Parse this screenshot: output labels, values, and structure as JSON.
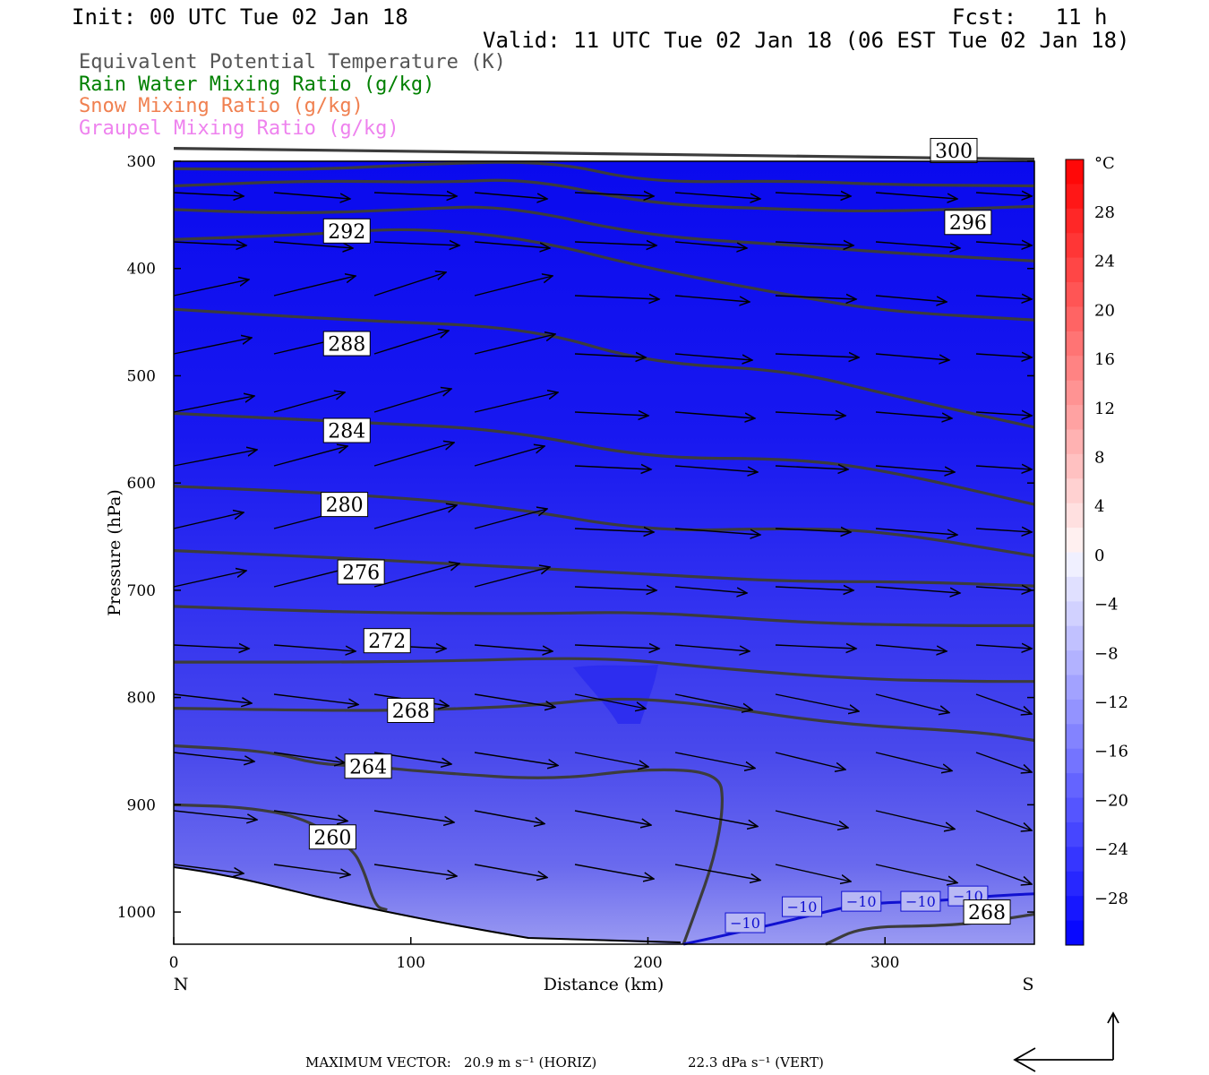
{
  "header": {
    "init": "Init: 00 UTC Tue 02 Jan 18",
    "fcst": "Fcst:   11 h",
    "valid": "Valid: 11 UTC Tue 02 Jan 18 (06 EST Tue 02 Jan 18)"
  },
  "legend": [
    {
      "label": "Equivalent Potential Temperature (K)",
      "color": "#555555"
    },
    {
      "label": "Rain Water Mixing Ratio (g/kg)",
      "color": "#008000"
    },
    {
      "label": "Snow Mixing Ratio (g/kg)",
      "color": "#f08050"
    },
    {
      "label": "Graupel Mixing Ratio (g/kg)",
      "color": "#ee82ee"
    }
  ],
  "footer": {
    "max_label": "MAXIMUM VECTOR:",
    "horiz": "20.9 m s⁻¹ (HORIZ)",
    "vert": "22.3 dPa s⁻¹ (VERT)"
  },
  "chart_data": {
    "type": "contour",
    "xlabel": "Distance (km)",
    "ylabel": "Pressure (hPa)",
    "xlim": [
      0,
      363
    ],
    "ylim": [
      1030,
      300
    ],
    "x_ticks": [
      0,
      100,
      200,
      300
    ],
    "y_ticks": [
      300,
      400,
      500,
      600,
      700,
      800,
      900,
      1000
    ],
    "endpoints": {
      "left": "N",
      "right": "S"
    },
    "colorbar": {
      "unit": "°C",
      "range": [
        -32,
        32
      ],
      "tick_labels": [
        "28",
        "24",
        "20",
        "16",
        "12",
        "8",
        "4",
        "0",
        "−4",
        "−8",
        "−12",
        "−16",
        "−20",
        "−24",
        "−28"
      ],
      "neg_color": "#0000ff",
      "pos_color": "#ff0000"
    },
    "theta_e_contours": [
      {
        "value": 260,
        "label_at": [
          67,
          930
        ],
        "points": [
          [
            0,
            900
          ],
          [
            30,
            902
          ],
          [
            55,
            912
          ],
          [
            75,
            940
          ],
          [
            80,
            960
          ],
          [
            85,
            995
          ],
          [
            90,
            998
          ]
        ]
      },
      {
        "value": 264,
        "label_at": [
          82,
          864
        ],
        "points": [
          [
            0,
            845
          ],
          [
            40,
            850
          ],
          [
            60,
            862
          ],
          [
            82,
            864
          ],
          [
            110,
            870
          ],
          [
            160,
            877
          ],
          [
            200,
            866
          ],
          [
            230,
            870
          ],
          [
            232,
            900
          ],
          [
            228,
            950
          ],
          [
            220,
            1000
          ],
          [
            215,
            1030
          ]
        ]
      },
      {
        "value": 268,
        "label_at": [
          100,
          812
        ],
        "points": [
          [
            0,
            810
          ],
          [
            60,
            812
          ],
          [
            100,
            812
          ],
          [
            150,
            808
          ],
          [
            185,
            800
          ],
          [
            220,
            805
          ],
          [
            280,
            825
          ],
          [
            340,
            832
          ],
          [
            363,
            840
          ]
        ]
      },
      {
        "value": 268,
        "label_at": [
          343,
          1000
        ],
        "points": [
          [
            275,
            1030
          ],
          [
            290,
            1014
          ],
          [
            320,
            1013
          ],
          [
            340,
            1010
          ],
          [
            363,
            1002
          ]
        ]
      },
      {
        "value": 272,
        "label_at": [
          90,
          747
        ],
        "points": [
          [
            0,
            767
          ],
          [
            100,
            767
          ],
          [
            180,
            762
          ],
          [
            230,
            773
          ],
          [
            290,
            783
          ],
          [
            340,
            785
          ],
          [
            363,
            785
          ]
        ]
      },
      {
        "value": 276,
        "label_at": [
          79,
          683
        ],
        "points": [
          [
            0,
            715
          ],
          [
            80,
            721
          ],
          [
            150,
            722
          ],
          [
            200,
            720
          ],
          [
            270,
            731
          ],
          [
            330,
            733
          ],
          [
            363,
            733
          ]
        ]
      },
      {
        "value": 280,
        "label_at": [
          72,
          620
        ],
        "points": [
          [
            0,
            663
          ],
          [
            72,
            670
          ],
          [
            140,
            678
          ],
          [
            200,
            685
          ],
          [
            260,
            692
          ],
          [
            310,
            692
          ],
          [
            363,
            696
          ]
        ]
      },
      {
        "value": 284,
        "label_at": [
          73,
          551
        ],
        "points": [
          [
            0,
            603
          ],
          [
            73,
            610
          ],
          [
            140,
            622
          ],
          [
            200,
            645
          ],
          [
            260,
            642
          ],
          [
            300,
            645
          ],
          [
            363,
            668
          ]
        ]
      },
      {
        "value": 288,
        "label_at": [
          73,
          470
        ],
        "points": [
          [
            0,
            535
          ],
          [
            73,
            543
          ],
          [
            140,
            550
          ],
          [
            200,
            577
          ],
          [
            260,
            577
          ],
          [
            300,
            588
          ],
          [
            363,
            620
          ]
        ]
      },
      {
        "value": 292,
        "label_at": [
          73,
          365
        ],
        "points": [
          [
            0,
            438
          ],
          [
            73,
            448
          ],
          [
            150,
            455
          ],
          [
            200,
            488
          ],
          [
            260,
            495
          ],
          [
            300,
            517
          ],
          [
            363,
            548
          ]
        ]
      },
      {
        "value": 296,
        "label_at": [
          335,
          357
        ],
        "points": [
          [
            0,
            373
          ],
          [
            60,
            368
          ],
          [
            100,
            362
          ],
          [
            150,
            372
          ],
          [
            200,
            400
          ],
          [
            260,
            425
          ],
          [
            300,
            440
          ],
          [
            363,
            448
          ]
        ]
      },
      {
        "value": 300,
        "label_at": [
          329,
          290
        ],
        "points": [
          [
            0,
            345
          ],
          [
            50,
            349
          ],
          [
            100,
            345
          ],
          [
            140,
            341
          ],
          [
            200,
            370
          ],
          [
            260,
            378
          ],
          [
            300,
            385
          ],
          [
            363,
            393
          ]
        ]
      },
      {
        "value": 304,
        "label_at": null,
        "points": [
          [
            0,
            323
          ],
          [
            60,
            318
          ],
          [
            110,
            320
          ],
          [
            150,
            316
          ],
          [
            200,
            340
          ],
          [
            260,
            345
          ],
          [
            300,
            347
          ],
          [
            363,
            342
          ]
        ]
      },
      {
        "value": 308,
        "label_at": null,
        "points": [
          [
            0,
            307
          ],
          [
            60,
            308
          ],
          [
            110,
            302
          ],
          [
            160,
            300
          ],
          [
            200,
            320
          ],
          [
            260,
            318
          ],
          [
            300,
            322
          ],
          [
            363,
            323
          ]
        ]
      },
      {
        "value": 312,
        "label_at": null,
        "points": [
          [
            0,
            288
          ],
          [
            363,
            298
          ]
        ]
      }
    ],
    "temperature_contour": {
      "value": -10,
      "labels_at": [
        [
          241,
          1010
        ],
        [
          265,
          995
        ],
        [
          290,
          990
        ],
        [
          315,
          990
        ],
        [
          335,
          985
        ]
      ],
      "points": [
        [
          215,
          1030
        ],
        [
          240,
          1018
        ],
        [
          265,
          1005
        ],
        [
          290,
          992
        ],
        [
          320,
          990
        ],
        [
          345,
          985
        ],
        [
          363,
          983
        ]
      ]
    }
  }
}
